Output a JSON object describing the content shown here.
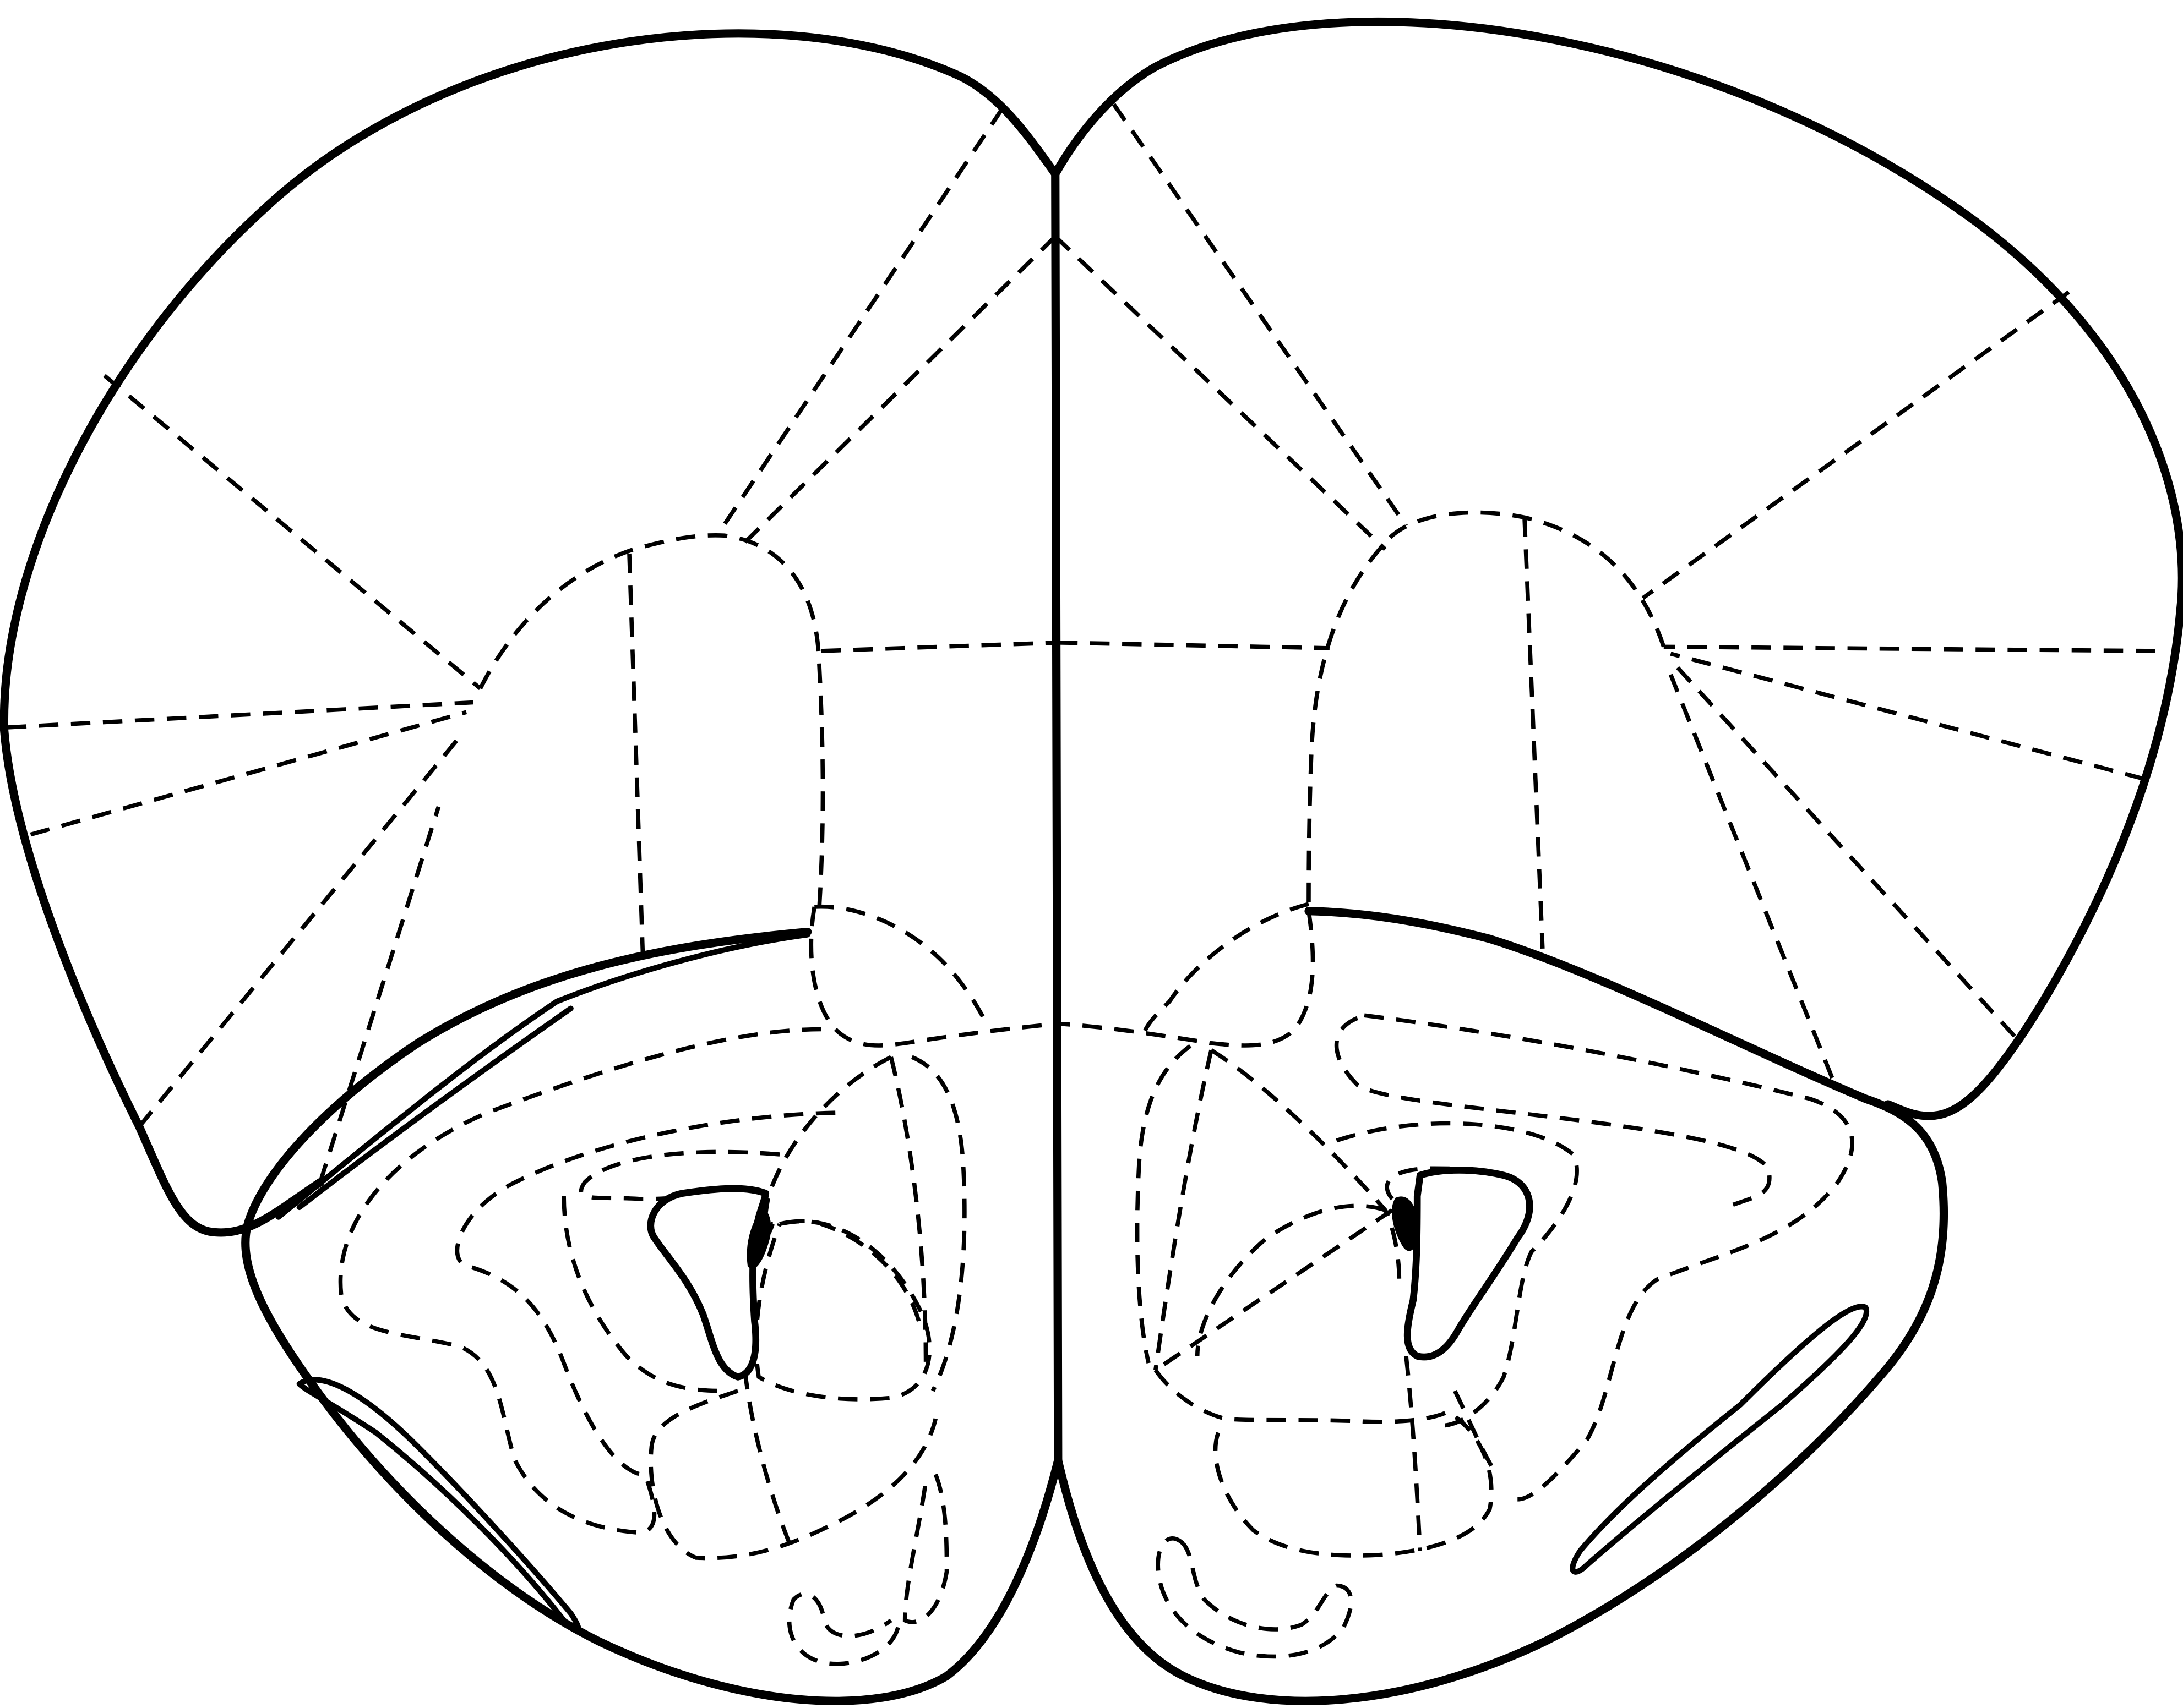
{
  "figure": {
    "description_visible_text": "",
    "colors": {
      "background": "#ffffff",
      "line": "#000000"
    },
    "line_styles": [
      "solid-outline",
      "dashed-boundary"
    ]
  }
}
